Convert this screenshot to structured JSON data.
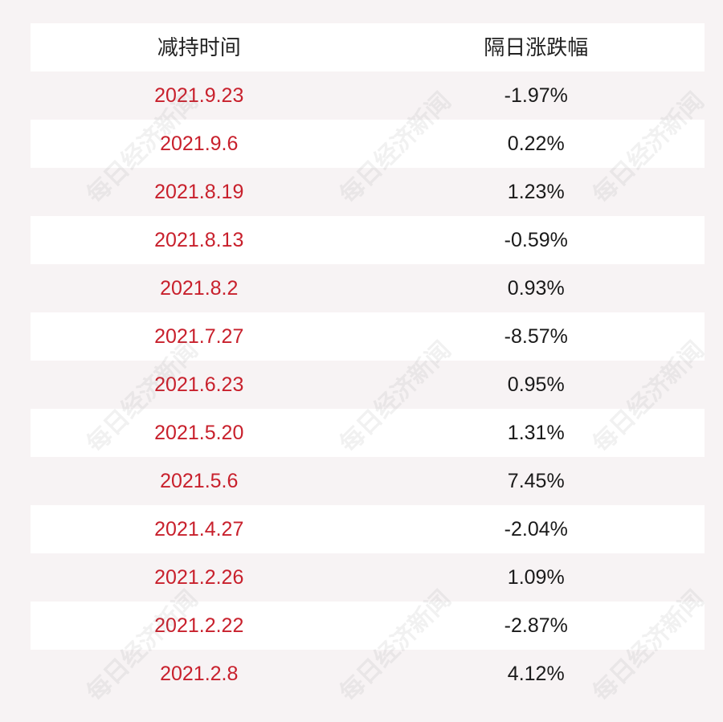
{
  "watermark": "每日经济新闻",
  "table": {
    "headers": [
      "减持时间",
      "隔日涨跌幅"
    ],
    "rows": [
      {
        "date": "2021.9.23",
        "change": "-1.97%"
      },
      {
        "date": "2021.9.6",
        "change": "0.22%"
      },
      {
        "date": "2021.8.19",
        "change": "1.23%"
      },
      {
        "date": "2021.8.13",
        "change": "-0.59%"
      },
      {
        "date": "2021.8.2",
        "change": "0.93%"
      },
      {
        "date": "2021.7.27",
        "change": "-8.57%"
      },
      {
        "date": "2021.6.23",
        "change": "0.95%"
      },
      {
        "date": "2021.5.20",
        "change": "1.31%"
      },
      {
        "date": "2021.5.6",
        "change": "7.45%"
      },
      {
        "date": "2021.4.27",
        "change": "-2.04%"
      },
      {
        "date": "2021.2.26",
        "change": "1.09%"
      },
      {
        "date": "2021.2.22",
        "change": "-2.87%"
      },
      {
        "date": "2021.2.8",
        "change": "4.12%"
      }
    ]
  }
}
